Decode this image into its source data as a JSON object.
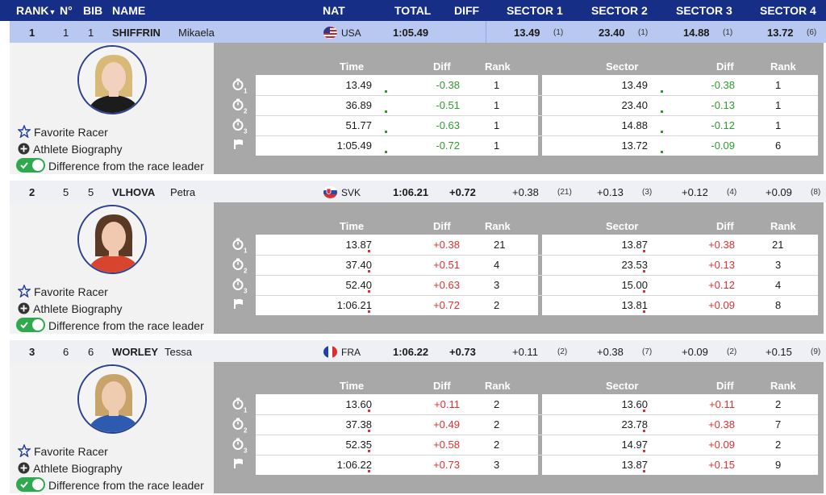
{
  "header": {
    "rank": "RANK",
    "no": "N°",
    "bib": "BIB",
    "name": "NAME",
    "nat": "NAT",
    "total": "TOTAL",
    "diff": "DIFF",
    "sector1": "SECTOR 1",
    "sector2": "SECTOR 2",
    "sector3": "SECTOR 3",
    "sector4": "SECTOR 4"
  },
  "table_labels": {
    "time": "Time",
    "diff": "Diff",
    "rank": "Rank",
    "sector": "Sector",
    "sector_diff": "Diff",
    "sector_rank": "Rank"
  },
  "links": {
    "favorite": "Favorite Racer",
    "biography": "Athlete Biography",
    "difference": "Difference from the race leader"
  },
  "colors": {
    "header_bg": "#172e86",
    "negative": "#2e9a2e",
    "positive": "#e03030",
    "toggle_on": "#2fa84f"
  },
  "racers": [
    {
      "rank": "1",
      "no": "1",
      "bib": "1",
      "surname": "SHIFFRIN",
      "firstname": "Mikaela",
      "nat": "USA",
      "flag_icon": "usa-flag-icon",
      "total": "1:05.49",
      "diff": "",
      "sectors": [
        {
          "val": "13.49",
          "rank": "(1)"
        },
        {
          "val": "23.40",
          "rank": "(1)"
        },
        {
          "val": "14.88",
          "rank": "(1)"
        },
        {
          "val": "13.72",
          "rank": "(6)"
        }
      ],
      "splits": [
        {
          "time": "13.49",
          "diff": "-0.38",
          "rank": "1",
          "sector": "13.49",
          "sdiff": "-0.38",
          "srank": "1"
        },
        {
          "time": "36.89",
          "diff": "-0.51",
          "rank": "1",
          "sector": "23.40",
          "sdiff": "-0.13",
          "srank": "1"
        },
        {
          "time": "51.77",
          "diff": "-0.63",
          "rank": "1",
          "sector": "14.88",
          "sdiff": "-0.12",
          "srank": "1"
        },
        {
          "time": "1:05.49",
          "diff": "-0.72",
          "rank": "1",
          "sector": "13.72",
          "sdiff": "-0.09",
          "srank": "6"
        }
      ]
    },
    {
      "rank": "2",
      "no": "5",
      "bib": "5",
      "surname": "VLHOVA",
      "firstname": "Petra",
      "nat": "SVK",
      "flag_icon": "svk-flag-icon",
      "total": "1:06.21",
      "diff": "+0.72",
      "sectors": [
        {
          "val": "+0.38",
          "rank": "(21)"
        },
        {
          "val": "+0.13",
          "rank": "(3)"
        },
        {
          "val": "+0.12",
          "rank": "(4)"
        },
        {
          "val": "+0.09",
          "rank": "(8)"
        }
      ],
      "splits": [
        {
          "time": "13.87",
          "diff": "+0.38",
          "rank": "21",
          "sector": "13.87",
          "sdiff": "+0.38",
          "srank": "21"
        },
        {
          "time": "37.40",
          "diff": "+0.51",
          "rank": "4",
          "sector": "23.53",
          "sdiff": "+0.13",
          "srank": "3"
        },
        {
          "time": "52.40",
          "diff": "+0.63",
          "rank": "3",
          "sector": "15.00",
          "sdiff": "+0.12",
          "srank": "4"
        },
        {
          "time": "1:06.21",
          "diff": "+0.72",
          "rank": "2",
          "sector": "13.81",
          "sdiff": "+0.09",
          "srank": "8"
        }
      ]
    },
    {
      "rank": "3",
      "no": "6",
      "bib": "6",
      "surname": "WORLEY",
      "firstname": "Tessa",
      "nat": "FRA",
      "flag_icon": "fra-flag-icon",
      "total": "1:06.22",
      "diff": "+0.73",
      "sectors": [
        {
          "val": "+0.11",
          "rank": "(2)"
        },
        {
          "val": "+0.38",
          "rank": "(7)"
        },
        {
          "val": "+0.09",
          "rank": "(2)"
        },
        {
          "val": "+0.15",
          "rank": "(9)"
        }
      ],
      "splits": [
        {
          "time": "13.60",
          "diff": "+0.11",
          "rank": "2",
          "sector": "13.60",
          "sdiff": "+0.11",
          "srank": "2"
        },
        {
          "time": "37.38",
          "diff": "+0.49",
          "rank": "2",
          "sector": "23.78",
          "sdiff": "+0.38",
          "srank": "7"
        },
        {
          "time": "52.35",
          "diff": "+0.58",
          "rank": "2",
          "sector": "14.97",
          "sdiff": "+0.09",
          "srank": "2"
        },
        {
          "time": "1:06.22",
          "diff": "+0.73",
          "rank": "3",
          "sector": "13.87",
          "sdiff": "+0.15",
          "srank": "9"
        }
      ]
    }
  ]
}
